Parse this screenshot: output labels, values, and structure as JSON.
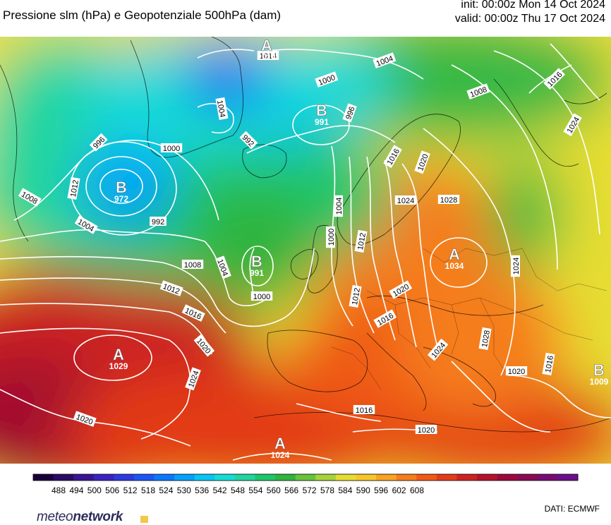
{
  "header": {
    "title": "Pressione slm (hPa) e Geopotenziale 500hPa (dam)",
    "init": "init: 00:00z Mon 14 Oct 2024",
    "valid": "valid: 00:00z Thu 17 Oct 2024"
  },
  "colorbar": {
    "ticks": [
      "488",
      "494",
      "500",
      "506",
      "512",
      "518",
      "524",
      "530",
      "536",
      "542",
      "548",
      "554",
      "560",
      "566",
      "572",
      "578",
      "584",
      "590",
      "596",
      "602",
      "608"
    ],
    "colors": [
      "#1a003a",
      "#2b0a66",
      "#3a1591",
      "#3a23bd",
      "#2e39de",
      "#1b56f2",
      "#0b78fb",
      "#04a0fb",
      "#06c5f5",
      "#18dbd5",
      "#22d59f",
      "#1ec66a",
      "#2fb43e",
      "#67c33a",
      "#a6d33a",
      "#e6dd33",
      "#f8c62a",
      "#f9a323",
      "#f57d1c",
      "#ef5a17",
      "#e23b18",
      "#cc2323",
      "#b3132c",
      "#9b0a3b",
      "#8a0a55",
      "#7a0b72",
      "#6a108a"
    ]
  },
  "map": {
    "pressure_labels": [
      "1014",
      "1004",
      "1000",
      "996",
      "1004",
      "1008",
      "1016",
      "1020",
      "1024",
      "1012",
      "996",
      "992",
      "1000",
      "1004",
      "1008",
      "1004",
      "1000",
      "1008",
      "1012",
      "1016",
      "1020",
      "1024",
      "992",
      "1000",
      "1004",
      "1012",
      "1016",
      "1020",
      "1024",
      "1028",
      "1016",
      "1012",
      "1024",
      "1020",
      "1008",
      "1016",
      "1020",
      "1028",
      "1024",
      "1016",
      "1020",
      "1020",
      "1024"
    ],
    "highs_lows": [
      {
        "letter": "A",
        "value": "1014"
      },
      {
        "letter": "B",
        "value": "991"
      },
      {
        "letter": "B",
        "value": "972"
      },
      {
        "letter": "B",
        "value": "991"
      },
      {
        "letter": "A",
        "value": "1034"
      },
      {
        "letter": "A",
        "value": "1029"
      },
      {
        "letter": "A",
        "value": "1024"
      },
      {
        "letter": "B",
        "value": "1009"
      }
    ]
  },
  "branding": {
    "logo_light": "meteo",
    "logo_bold": "network",
    "credit": "DATI:  ECMWF"
  }
}
